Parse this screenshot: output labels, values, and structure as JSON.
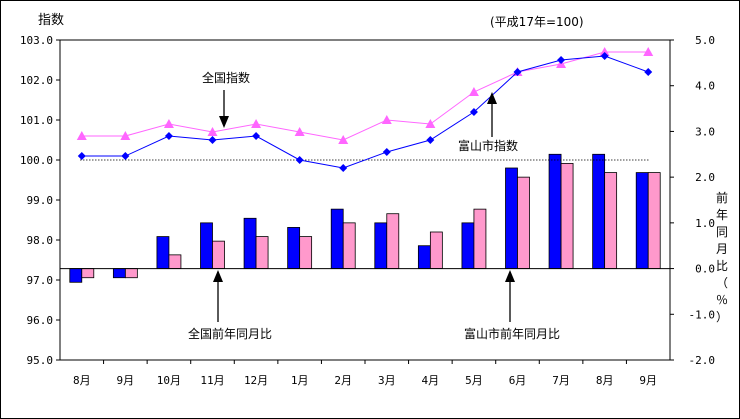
{
  "chart_data": {
    "type": "bar+line",
    "left_axis_label": "指数",
    "right_axis_label": "前年同月比（％）",
    "base_note": "(平成17年=100)",
    "categories": [
      "8月",
      "9月",
      "10月",
      "11月",
      "12月",
      "1月",
      "2月",
      "3月",
      "4月",
      "5月",
      "6月",
      "7月",
      "8月",
      "9月"
    ],
    "left_axis": {
      "min": 95.0,
      "max": 103.0,
      "ticks": [
        "95.0",
        "96.0",
        "97.0",
        "98.0",
        "99.0",
        "100.0",
        "101.0",
        "102.0",
        "103.0"
      ]
    },
    "right_axis": {
      "min": -2.0,
      "max": 5.0,
      "ticks": [
        "-2.0",
        "-1.0",
        "0.0",
        "1.0",
        "2.0",
        "3.0",
        "4.0",
        "5.0"
      ]
    },
    "reference_line": 100.0,
    "series": [
      {
        "name": "全国指数",
        "kind": "line",
        "axis": "left",
        "color": "#ff66ff",
        "marker": "triangle",
        "values": [
          100.6,
          100.6,
          100.9,
          100.7,
          100.9,
          100.7,
          100.5,
          101.0,
          100.9,
          101.7,
          102.2,
          102.4,
          102.7,
          102.7
        ]
      },
      {
        "name": "富山市指数",
        "kind": "line",
        "axis": "left",
        "color": "#0000ff",
        "marker": "diamond",
        "values": [
          100.1,
          100.1,
          100.6,
          100.5,
          100.6,
          100.0,
          99.8,
          100.2,
          100.5,
          101.2,
          102.2,
          102.5,
          102.6,
          102.2
        ]
      },
      {
        "name": "全国前年同月比",
        "kind": "bar",
        "axis": "right",
        "color": "#ff99cc",
        "values": [
          -0.2,
          -0.2,
          0.3,
          0.6,
          0.7,
          0.7,
          1.0,
          1.2,
          0.8,
          1.3,
          2.0,
          2.3,
          2.1,
          2.1
        ]
      },
      {
        "name": "富山市前年同月比",
        "kind": "bar",
        "axis": "right",
        "color": "#0000ff",
        "values": [
          -0.3,
          -0.2,
          0.7,
          1.0,
          1.1,
          0.9,
          1.3,
          1.0,
          0.5,
          1.0,
          2.2,
          2.5,
          2.5,
          2.1
        ]
      }
    ],
    "annotations": [
      "全国指数",
      "富山市指数",
      "全国前年同月比",
      "富山市前年同月比"
    ],
    "grid": false,
    "legend": "none"
  }
}
